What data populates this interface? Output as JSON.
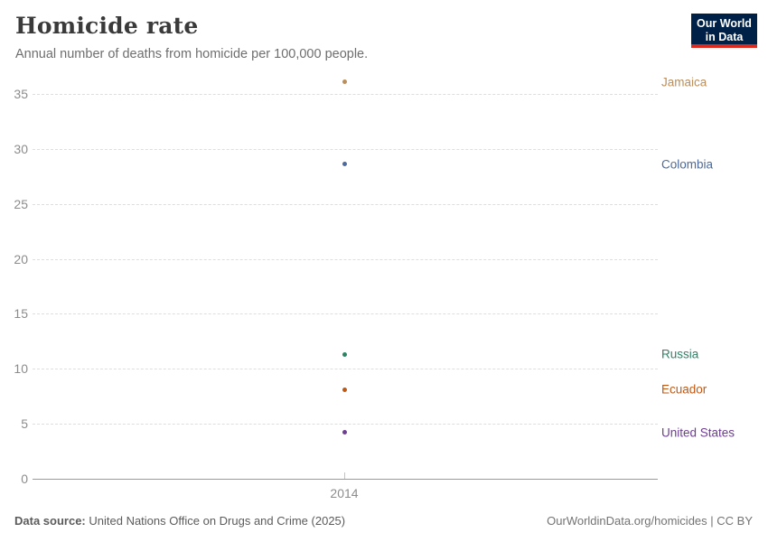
{
  "header": {
    "title": "Homicide rate",
    "subtitle": "Annual number of deaths from homicide per 100,000 people."
  },
  "logo": {
    "line1": "Our World",
    "line2": "in Data",
    "bg_color": "#002147",
    "accent_color": "#DC2A1F"
  },
  "chart_data": {
    "type": "scatter",
    "title": "Homicide rate",
    "subtitle": "Annual number of deaths from homicide per 100,000 people.",
    "x": [
      2014
    ],
    "xtick_labels": [
      "2014"
    ],
    "xlabel": "",
    "ylabel": "",
    "ylim": [
      0,
      35
    ],
    "yticks": [
      0,
      5,
      10,
      15,
      20,
      25,
      30,
      35
    ],
    "grid": "horizontal-dashed",
    "legend_position": "right-entity-labels",
    "series": [
      {
        "name": "Jamaica",
        "values": [
          36.1
        ],
        "color": "#BC8E5A"
      },
      {
        "name": "Colombia",
        "values": [
          28.6
        ],
        "color": "#4C6A9C"
      },
      {
        "name": "Russia",
        "values": [
          11.3
        ],
        "color": "#2C8465"
      },
      {
        "name": "Ecuador",
        "values": [
          8.1
        ],
        "color": "#BE5915"
      },
      {
        "name": "United States",
        "values": [
          4.2
        ],
        "color": "#6D3E91"
      }
    ]
  },
  "footer": {
    "source_label": "Data source:",
    "source_text": "United Nations Office on Drugs and Crime (2025)",
    "credit": "OurWorldinData.org/homicides | CC BY"
  }
}
